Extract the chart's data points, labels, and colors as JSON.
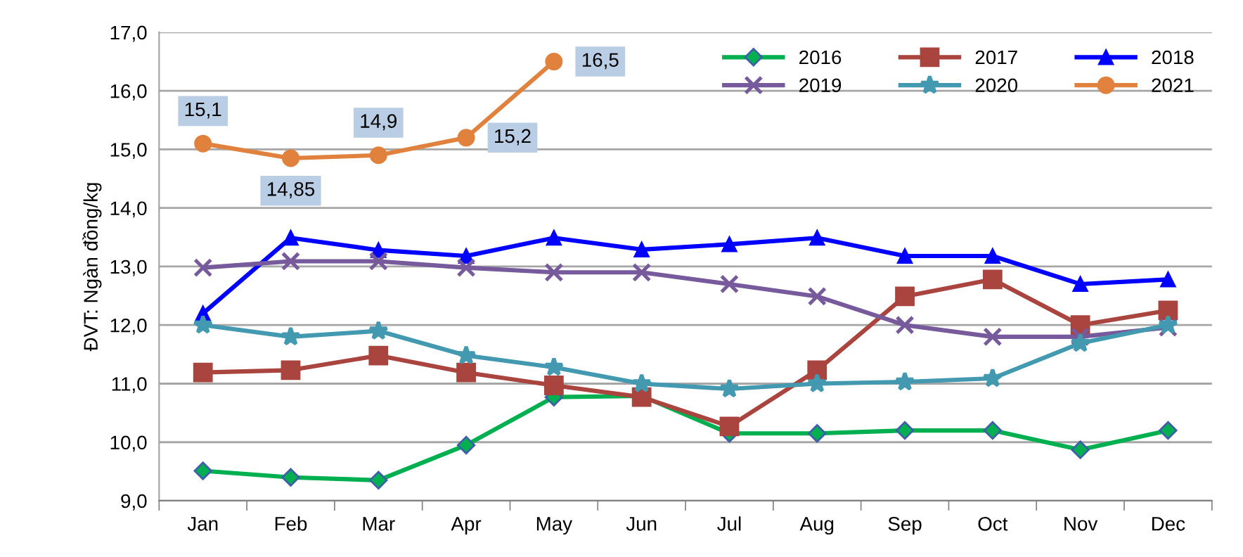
{
  "chart_data": {
    "type": "line",
    "ylabel": "ĐVT: Ngàn đồng/kg",
    "categories": [
      "Jan",
      "Feb",
      "Mar",
      "Apr",
      "May",
      "Jun",
      "Jul",
      "Aug",
      "Sep",
      "Oct",
      "Nov",
      "Dec"
    ],
    "series": [
      {
        "name": "2016",
        "color": "#00b050",
        "marker": "diamond",
        "values": [
          9.51,
          9.4,
          9.35,
          9.95,
          10.77,
          10.79,
          10.15,
          10.15,
          10.2,
          10.2,
          9.87,
          10.2
        ]
      },
      {
        "name": "2017",
        "color": "#a9443f",
        "marker": "square",
        "values": [
          11.19,
          11.23,
          11.48,
          11.19,
          10.97,
          10.77,
          10.27,
          11.23,
          12.49,
          12.78,
          12.0,
          12.25
        ]
      },
      {
        "name": "2018",
        "color": "#0000ff",
        "marker": "triangle",
        "values": [
          12.2,
          13.49,
          13.28,
          13.18,
          13.49,
          13.29,
          13.38,
          13.49,
          13.18,
          13.18,
          12.7,
          12.78
        ]
      },
      {
        "name": "2019",
        "color": "#775a9b",
        "marker": "cross",
        "values": [
          12.98,
          13.09,
          13.09,
          12.98,
          12.9,
          12.9,
          12.7,
          12.49,
          12.0,
          11.8,
          11.8,
          11.96
        ]
      },
      {
        "name": "2020",
        "color": "#4299b0",
        "marker": "star",
        "values": [
          12.0,
          11.8,
          11.9,
          11.48,
          11.28,
          11.0,
          10.91,
          11.0,
          11.03,
          11.09,
          11.69,
          12.0
        ]
      },
      {
        "name": "2021",
        "color": "#e0823d",
        "marker": "circle",
        "values": [
          15.1,
          14.85,
          14.9,
          15.2,
          16.5,
          null,
          null,
          null,
          null,
          null,
          null,
          null
        ],
        "value_labels": [
          "15,1",
          "14,85",
          "14,9",
          "15,2",
          "16,5",
          null,
          null,
          null,
          null,
          null,
          null,
          null
        ]
      }
    ],
    "ylim": [
      9.0,
      17.0
    ],
    "yticks": [
      {
        "value": 9,
        "label": "9,0"
      },
      {
        "value": 10,
        "label": "10,0"
      },
      {
        "value": 11,
        "label": "11,0"
      },
      {
        "value": 12,
        "label": "12,0"
      },
      {
        "value": 13,
        "label": "13,0"
      },
      {
        "value": 14,
        "label": "14,0"
      },
      {
        "value": 15,
        "label": "15,0"
      },
      {
        "value": 16,
        "label": "16,0"
      },
      {
        "value": 17,
        "label": "17,0"
      }
    ],
    "grid": "y",
    "legend": "top right",
    "line_style": "solid"
  }
}
